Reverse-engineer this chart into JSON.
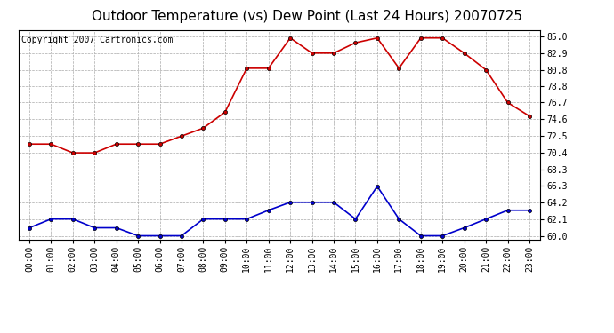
{
  "title": "Outdoor Temperature (vs) Dew Point (Last 24 Hours) 20070725",
  "copyright": "Copyright 2007 Cartronics.com",
  "hours": [
    "00:00",
    "01:00",
    "02:00",
    "03:00",
    "04:00",
    "05:00",
    "06:00",
    "07:00",
    "08:00",
    "09:00",
    "10:00",
    "11:00",
    "12:00",
    "13:00",
    "14:00",
    "15:00",
    "16:00",
    "17:00",
    "18:00",
    "19:00",
    "20:00",
    "21:00",
    "22:00",
    "23:00"
  ],
  "temp": [
    71.5,
    71.5,
    70.4,
    70.4,
    71.5,
    71.5,
    71.5,
    72.5,
    73.5,
    75.5,
    81.0,
    81.0,
    84.8,
    82.9,
    82.9,
    84.2,
    84.8,
    81.0,
    84.8,
    84.8,
    82.9,
    80.8,
    76.7,
    75.0
  ],
  "dew": [
    61.0,
    62.1,
    62.1,
    61.0,
    61.0,
    60.0,
    60.0,
    60.0,
    62.1,
    62.1,
    62.1,
    63.2,
    64.2,
    64.2,
    64.2,
    62.1,
    66.2,
    62.1,
    60.0,
    60.0,
    61.0,
    62.1,
    63.2,
    63.2
  ],
  "temp_color": "#cc0000",
  "dew_color": "#0000cc",
  "background": "#ffffff",
  "grid_color": "#aaaaaa",
  "yticks": [
    60.0,
    62.1,
    64.2,
    66.3,
    68.3,
    70.4,
    72.5,
    74.6,
    76.7,
    78.8,
    80.8,
    82.9,
    85.0
  ],
  "ylim": [
    59.5,
    85.8
  ],
  "title_fontsize": 11,
  "tick_fontsize": 7,
  "copyright_fontsize": 7
}
